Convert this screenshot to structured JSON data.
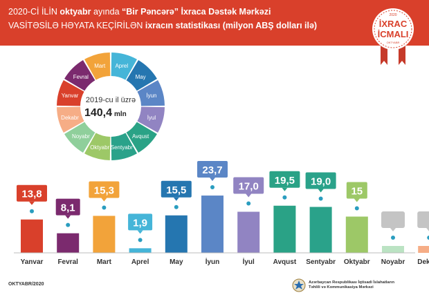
{
  "header": {
    "line1_prefix": "2020-Cİ İLİN",
    "line1_bold": "oktyabr",
    "line1_mid": "ayında",
    "line1_quote": "“Bir Pəncərə” İxraca Dəstək Mərkəzi",
    "line2_caps": "VASİTƏSİLƏ HƏYATA KEÇİRİLƏN",
    "line2_bold": "ixracın statistikası (milyon ABŞ dolları ilə)"
  },
  "badge": {
    "year": "2020",
    "line1": "İXRAC",
    "line2": "İCMALI",
    "sub": "OKTYABR"
  },
  "circle": {
    "center_line1": "2019-cu il üzrə",
    "center_value": "140,4",
    "center_unit": "mln"
  },
  "footer": {
    "left": "OKTYABR/2020",
    "right_line1": "Azərbaycan Respublikası İqtisadi İslahatların",
    "right_line2": "Təhlili və Kommunikasiya Mərkəzi"
  },
  "chart_data": {
    "type": "bar",
    "categories": [
      "Yanvar",
      "Fevral",
      "Mart",
      "Aprel",
      "May",
      "İyun",
      "İyul",
      "Avqust",
      "Sentyabr",
      "Oktyabr",
      "Noyabr",
      "Dekabr"
    ],
    "values": [
      13.8,
      8.1,
      15.3,
      1.9,
      15.5,
      23.7,
      17.0,
      19.5,
      19.0,
      15,
      null,
      null
    ],
    "labels": [
      "13,8",
      "8,1",
      "15,3",
      "1,9",
      "15,5",
      "23,7",
      "17,0",
      "19,5",
      "19,0",
      "15",
      "",
      ""
    ],
    "colors": [
      "#d9402b",
      "#7b2a6e",
      "#f2a33a",
      "#45b5d8",
      "#2576b0",
      "#5b86c6",
      "#9184c2",
      "#2aa286",
      "#2aa28a",
      "#9dc867",
      "#bbe3c3",
      "#f6ad86"
    ],
    "wheel": [
      "Yanvar",
      "Fevral",
      "Mart",
      "Aprel",
      "May",
      "İyun",
      "İyul",
      "Avqust",
      "Sentyabr",
      "Oktyabr",
      "Noyabr",
      "Dekabr"
    ],
    "wheel_colors": [
      "#d9402b",
      "#7b2a6e",
      "#f2a33a",
      "#45b5d8",
      "#2576b0",
      "#5b86c6",
      "#9184c2",
      "#2aa286",
      "#2aa28a",
      "#9dc867",
      "#8fcf9b",
      "#f6ad86"
    ]
  }
}
